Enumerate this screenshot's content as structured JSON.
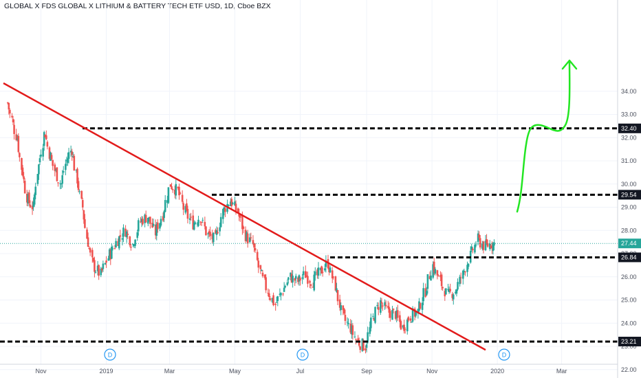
{
  "chart_data": {
    "type": "candlestick",
    "title": "GLOBAL X FDS GLOBAL X LITHIUM & BATTERY TECH ETF USD, 1D, Cboe BZX",
    "last_price": "27.44",
    "y_range": [
      22.0,
      34.35
    ],
    "y_ticks": [
      "22.00",
      "23.00",
      "24.00",
      "25.00",
      "26.00",
      "27.00",
      "28.00",
      "29.00",
      "30.00",
      "31.00",
      "32.00",
      "33.00",
      "34.00"
    ],
    "x_ticks": [
      "Nov",
      "2019",
      "Mar",
      "May",
      "Jul",
      "Sep",
      "Nov",
      "2020",
      "Mar"
    ],
    "support_resistance_levels": [
      {
        "value": 32.4,
        "label": "32.40"
      },
      {
        "value": 29.54,
        "label": "29.54"
      },
      {
        "value": 26.84,
        "label": "26.84"
      },
      {
        "value": 23.21,
        "label": "23.21"
      }
    ],
    "trendline": {
      "color": "#e21b1b",
      "from": {
        "date": "2018-09-27",
        "price": 34.35
      },
      "to": {
        "date": "2019-12-21",
        "price": 22.85
      }
    },
    "projection_arrow": {
      "color": "#22e622",
      "from_price": 27.0,
      "to_price": 32.4
    },
    "dividend_markers": [
      "D",
      "D",
      "D"
    ],
    "up_color": "#26a69a",
    "down_color": "#ef5350",
    "series": [
      {
        "name": "price",
        "points": [
          [
            "2018-10-01",
            33.5
          ],
          [
            "2018-10-05",
            32.8
          ],
          [
            "2018-10-10",
            32.0
          ],
          [
            "2018-10-15",
            30.5
          ],
          [
            "2018-10-20",
            29.3
          ],
          [
            "2018-10-25",
            29.0
          ],
          [
            "2018-10-30",
            30.8
          ],
          [
            "2018-11-05",
            32.2
          ],
          [
            "2018-11-10",
            31.2
          ],
          [
            "2018-11-15",
            30.5
          ],
          [
            "2018-11-20",
            30.0
          ],
          [
            "2018-11-25",
            31.0
          ],
          [
            "2018-11-30",
            31.5
          ],
          [
            "2018-12-05",
            30.2
          ],
          [
            "2018-12-10",
            29.0
          ],
          [
            "2018-12-15",
            27.5
          ],
          [
            "2018-12-20",
            26.5
          ],
          [
            "2018-12-27",
            26.1
          ],
          [
            "2019-01-05",
            27.0
          ],
          [
            "2019-01-12",
            27.6
          ],
          [
            "2019-01-19",
            28.0
          ],
          [
            "2019-01-26",
            27.4
          ],
          [
            "2019-02-02",
            28.4
          ],
          [
            "2019-02-09",
            28.6
          ],
          [
            "2019-02-16",
            27.9
          ],
          [
            "2019-02-23",
            28.7
          ],
          [
            "2019-03-02",
            30.0
          ],
          [
            "2019-03-09",
            29.7
          ],
          [
            "2019-03-16",
            28.8
          ],
          [
            "2019-03-23",
            28.3
          ],
          [
            "2019-03-30",
            28.6
          ],
          [
            "2019-04-06",
            27.8
          ],
          [
            "2019-04-13",
            27.6
          ],
          [
            "2019-04-20",
            28.8
          ],
          [
            "2019-04-27",
            29.3
          ],
          [
            "2019-05-04",
            28.8
          ],
          [
            "2019-05-11",
            27.8
          ],
          [
            "2019-05-18",
            27.4
          ],
          [
            "2019-05-25",
            26.2
          ],
          [
            "2019-06-01",
            25.4
          ],
          [
            "2019-06-08",
            24.8
          ],
          [
            "2019-06-15",
            25.4
          ],
          [
            "2019-06-22",
            26.0
          ],
          [
            "2019-06-29",
            25.8
          ],
          [
            "2019-07-06",
            26.1
          ],
          [
            "2019-07-13",
            25.8
          ],
          [
            "2019-07-20",
            26.2
          ],
          [
            "2019-07-27",
            26.6
          ],
          [
            "2019-08-03",
            25.6
          ],
          [
            "2019-08-10",
            24.3
          ],
          [
            "2019-08-17",
            23.8
          ],
          [
            "2019-08-24",
            23.2
          ],
          [
            "2019-08-31",
            23.0
          ],
          [
            "2019-09-07",
            24.2
          ],
          [
            "2019-09-14",
            24.9
          ],
          [
            "2019-09-21",
            24.5
          ],
          [
            "2019-09-28",
            24.4
          ],
          [
            "2019-10-05",
            23.8
          ],
          [
            "2019-10-12",
            24.3
          ],
          [
            "2019-10-19",
            24.5
          ],
          [
            "2019-10-26",
            25.4
          ],
          [
            "2019-11-02",
            26.5
          ],
          [
            "2019-11-09",
            25.8
          ],
          [
            "2019-11-16",
            25.2
          ],
          [
            "2019-11-23",
            25.4
          ],
          [
            "2019-11-30",
            26.1
          ],
          [
            "2019-12-07",
            26.9
          ],
          [
            "2019-12-14",
            27.6
          ],
          [
            "2019-12-21",
            27.3
          ],
          [
            "2019-12-27",
            27.44
          ]
        ]
      }
    ]
  }
}
